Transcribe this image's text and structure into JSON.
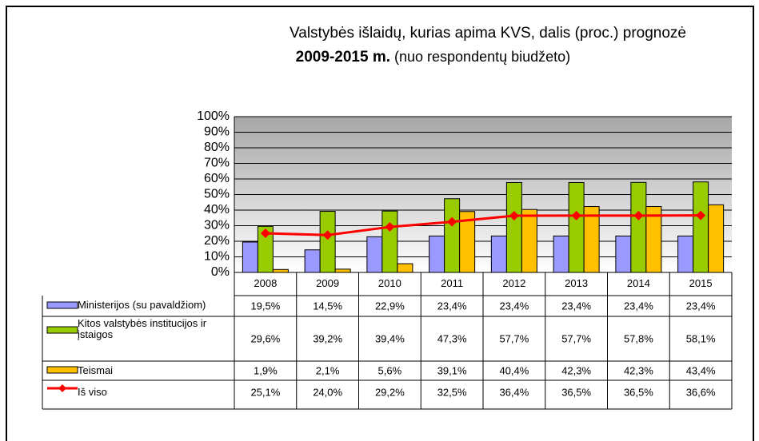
{
  "chart_data": {
    "type": "bar",
    "title": "Valstybės išlaidų, kurias apima KVS, dalis (proc.) prognozė",
    "subtitle": "2009-2015 m.",
    "subtitle_note": "(nuo respondentų biudžeto)",
    "categories": [
      "2008",
      "2009",
      "2010",
      "2011",
      "2012",
      "2013",
      "2014",
      "2015"
    ],
    "ylim": [
      0,
      100
    ],
    "yticks": [
      {
        "value": 0,
        "label": "0%"
      },
      {
        "value": 10,
        "label": "10%"
      },
      {
        "value": 20,
        "label": "20%"
      },
      {
        "value": 30,
        "label": "30%"
      },
      {
        "value": 40,
        "label": "40%"
      },
      {
        "value": 50,
        "label": "50%"
      },
      {
        "value": 60,
        "label": "60%"
      },
      {
        "value": 70,
        "label": "70%"
      },
      {
        "value": 80,
        "label": "80%"
      },
      {
        "value": 90,
        "label": "90%"
      },
      {
        "value": 100,
        "label": "100%"
      }
    ],
    "grid": true,
    "series": [
      {
        "name": "Ministerijos (su pavaldžiom)",
        "type": "bar",
        "color": "#9999ff",
        "values": [
          19.5,
          14.5,
          22.9,
          23.4,
          23.4,
          23.4,
          23.4,
          23.4
        ],
        "value_labels": [
          "19,5%",
          "14,5%",
          "22,9%",
          "23,4%",
          "23,4%",
          "23,4%",
          "23,4%",
          "23,4%"
        ]
      },
      {
        "name": "Kitos valstybės institucijos ir įstaigos",
        "type": "bar",
        "color": "#99cc00",
        "values": [
          29.6,
          39.2,
          39.4,
          47.3,
          57.7,
          57.7,
          57.8,
          58.1
        ],
        "value_labels": [
          "29,6%",
          "39,2%",
          "39,4%",
          "47,3%",
          "57,7%",
          "57,7%",
          "57,8%",
          "58,1%"
        ]
      },
      {
        "name": "Teismai",
        "type": "bar",
        "color": "#ffc000",
        "values": [
          1.9,
          2.1,
          5.6,
          39.1,
          40.4,
          42.3,
          42.3,
          43.4
        ],
        "value_labels": [
          "1,9%",
          "2,1%",
          "5,6%",
          "39,1%",
          "40,4%",
          "42,3%",
          "42,3%",
          "43,4%"
        ]
      },
      {
        "name": "Iš viso",
        "type": "line",
        "color": "#ff0000",
        "values": [
          25.1,
          24.0,
          29.2,
          32.5,
          36.4,
          36.5,
          36.5,
          36.6
        ],
        "value_labels": [
          "25,1%",
          "24,0%",
          "29,2%",
          "32,5%",
          "36,4%",
          "36,5%",
          "36,5%",
          "36,6%"
        ]
      }
    ]
  }
}
